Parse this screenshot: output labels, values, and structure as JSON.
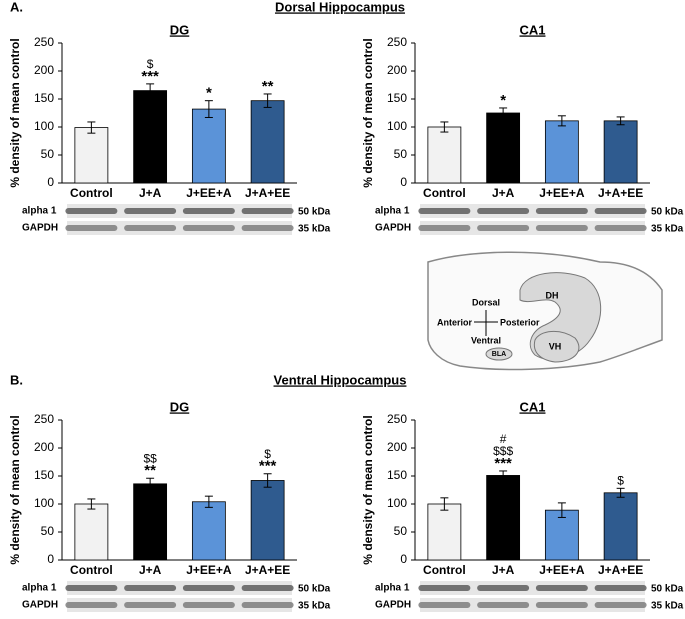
{
  "figure": {
    "sections": [
      {
        "label": "A.",
        "title": "Dorsal Hippocampus"
      },
      {
        "label": "B.",
        "title": "Ventral Hippocampus"
      }
    ]
  },
  "chart_data": [
    {
      "type": "bar",
      "title": "DG",
      "y_label": "% density of mean control",
      "categories": [
        "Control",
        "J+A",
        "J+EE+A",
        "J+A+EE"
      ],
      "values": [
        99,
        165,
        132,
        147
      ],
      "errors": [
        10,
        12,
        15,
        12
      ],
      "colors": [
        "#f2f2f2",
        "#000000",
        "#5b93d8",
        "#2f5b8f"
      ],
      "annotations": [
        [],
        [
          "$",
          "***"
        ],
        [
          "*"
        ],
        [
          "**"
        ]
      ],
      "ylim": [
        0,
        250
      ],
      "yticks": [
        0,
        50,
        100,
        150,
        200,
        250
      ],
      "blot": {
        "rows": [
          "alpha 1",
          "GAPDH"
        ],
        "sizes": [
          "50 kDa",
          "35 kDa"
        ]
      }
    },
    {
      "type": "bar",
      "title": "CA1",
      "y_label": "% density of mean control",
      "categories": [
        "Control",
        "J+A",
        "J+EE+A",
        "J+A+EE"
      ],
      "values": [
        100,
        125,
        111,
        111
      ],
      "errors": [
        9,
        9,
        9,
        7
      ],
      "colors": [
        "#f2f2f2",
        "#000000",
        "#5b93d8",
        "#2f5b8f"
      ],
      "annotations": [
        [],
        [
          "*"
        ],
        [],
        []
      ],
      "ylim": [
        0,
        250
      ],
      "yticks": [
        0,
        50,
        100,
        150,
        200,
        250
      ],
      "blot": {
        "rows": [
          "alpha 1",
          "GAPDH"
        ],
        "sizes": [
          "50 kDa",
          "35 kDa"
        ]
      }
    },
    {
      "type": "bar",
      "title": "DG",
      "y_label": "% density of mean control",
      "categories": [
        "Control",
        "J+A",
        "J+EE+A",
        "J+A+EE"
      ],
      "values": [
        100,
        136,
        104,
        142
      ],
      "errors": [
        9,
        10,
        10,
        12
      ],
      "colors": [
        "#f2f2f2",
        "#000000",
        "#5b93d8",
        "#2f5b8f"
      ],
      "annotations": [
        [],
        [
          "$$",
          "**"
        ],
        [],
        [
          "$",
          "***"
        ]
      ],
      "ylim": [
        0,
        250
      ],
      "yticks": [
        0,
        50,
        100,
        150,
        200,
        250
      ],
      "blot": {
        "rows": [
          "alpha 1",
          "GAPDH"
        ],
        "sizes": [
          "50 kDa",
          "35 kDa"
        ]
      }
    },
    {
      "type": "bar",
      "title": "CA1",
      "y_label": "% density of mean control",
      "categories": [
        "Control",
        "J+A",
        "J+EE+A",
        "J+A+EE"
      ],
      "values": [
        100,
        151,
        89,
        120
      ],
      "errors": [
        11,
        8,
        13,
        8
      ],
      "colors": [
        "#f2f2f2",
        "#000000",
        "#5b93d8",
        "#2f5b8f"
      ],
      "annotations": [
        [],
        [
          "#",
          "$$$",
          "***"
        ],
        [],
        [
          "$"
        ]
      ],
      "ylim": [
        0,
        250
      ],
      "yticks": [
        0,
        50,
        100,
        150,
        200,
        250
      ],
      "blot": {
        "rows": [
          "alpha 1",
          "GAPDH"
        ],
        "sizes": [
          "50 kDa",
          "35 kDa"
        ]
      }
    }
  ],
  "diagram": {
    "labels": [
      "Dorsal",
      "Ventral",
      "Anterior",
      "Posterior",
      "DH",
      "VH",
      "BLA"
    ]
  }
}
